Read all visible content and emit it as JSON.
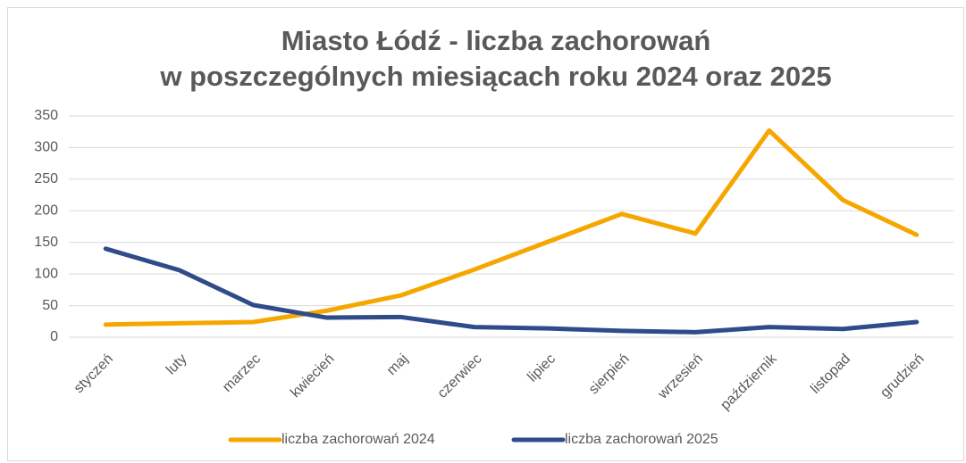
{
  "chart_data": {
    "type": "line",
    "title": [
      "Miasto Łódź - liczba zachorowań",
      "w poszczególnych miesiącach roku 2024 oraz 2025"
    ],
    "categories": [
      "styczeń",
      "luty",
      "marzec",
      "kwiecień",
      "maj",
      "czerwiec",
      "lipiec",
      "sierpień",
      "wrzesień",
      "październik",
      "listopad",
      "grudzień"
    ],
    "series": [
      {
        "name": "liczba zachorowań 2024",
        "color": "#f5a700",
        "values": [
          20,
          22,
          24,
          42,
          66,
          107,
          151,
          195,
          164,
          327,
          217,
          162
        ]
      },
      {
        "name": "liczba zachorowań 2025",
        "color": "#2f4b8a",
        "values": [
          140,
          106,
          51,
          31,
          32,
          16,
          14,
          10,
          8,
          16,
          13,
          24
        ]
      }
    ],
    "ylim": [
      0,
      350
    ],
    "yticks": [
      0,
      50,
      100,
      150,
      200,
      250,
      300,
      350
    ],
    "grid": true,
    "legend": "bottom"
  }
}
